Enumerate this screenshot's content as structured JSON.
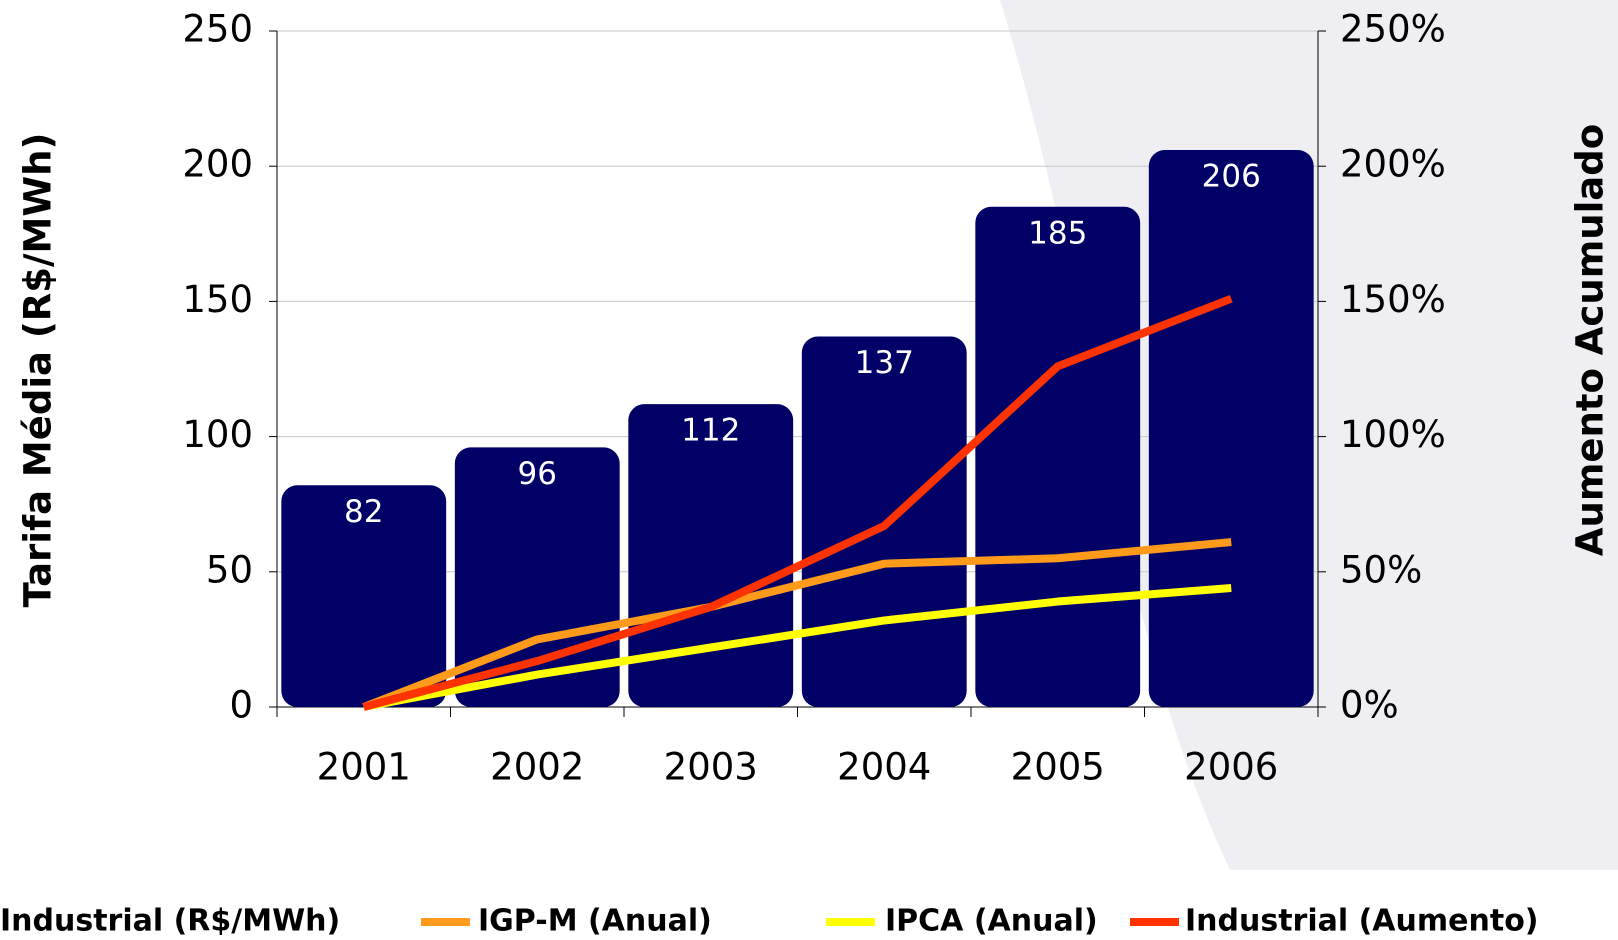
{
  "chart_data": {
    "type": "bar-line",
    "y_label": "Tarifa Média (R$/MWh)",
    "y2_label": "Aumento Acumulado",
    "categories": [
      "2001",
      "2002",
      "2003",
      "2004",
      "2005",
      "2006"
    ],
    "series": [
      {
        "name": "Industrial (R$/MWh)",
        "type": "bar",
        "color": "#000066",
        "values": [
          82,
          96,
          112,
          137,
          185,
          206
        ]
      },
      {
        "name": "IGP-M (Anual)",
        "type": "line",
        "axis": "y2",
        "color": "#ff9a1a",
        "values": [
          0,
          25,
          37,
          53,
          55,
          61
        ]
      },
      {
        "name": "IPCA (Anual)",
        "type": "line",
        "axis": "y2",
        "color": "#ffff00",
        "values": [
          0,
          12,
          22,
          32,
          39,
          44
        ]
      },
      {
        "name": "Industrial (Aumento)",
        "type": "line",
        "axis": "y2",
        "color": "#ff3300",
        "values": [
          0,
          17,
          37,
          67,
          126,
          151
        ]
      }
    ],
    "ylim": [
      0,
      250
    ],
    "yticks": [
      0,
      50,
      100,
      150,
      200,
      250
    ],
    "y2lim": [
      0,
      250
    ],
    "y2ticks": [
      {
        "value": 0,
        "label": "0%"
      },
      {
        "value": 50,
        "label": "50%"
      },
      {
        "value": 100,
        "label": "100%"
      },
      {
        "value": 150,
        "label": "150%"
      },
      {
        "value": 200,
        "label": "200%"
      },
      {
        "value": 250,
        "label": "250%"
      }
    ],
    "grid": true
  }
}
